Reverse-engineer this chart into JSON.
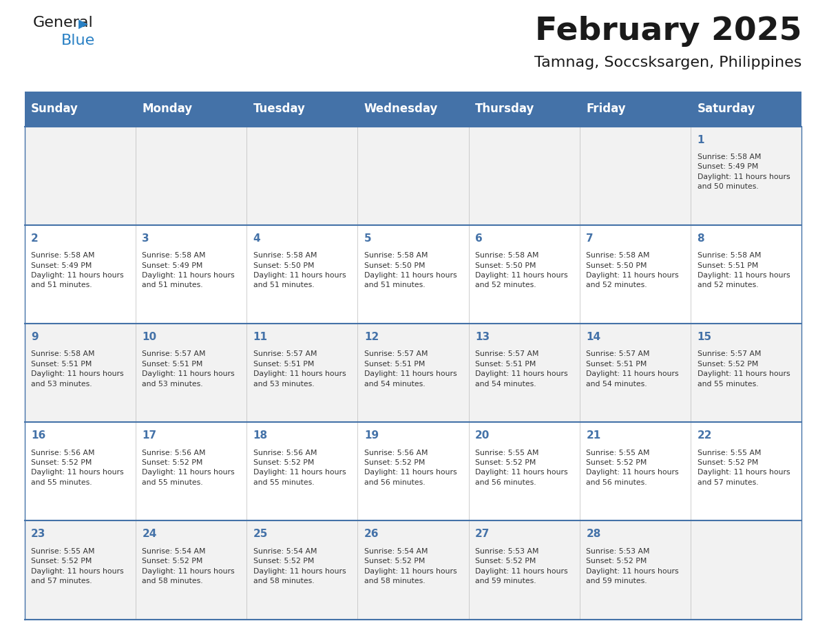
{
  "title": "February 2025",
  "subtitle": "Tamnag, Soccsksargen, Philippines",
  "days_of_week": [
    "Sunday",
    "Monday",
    "Tuesday",
    "Wednesday",
    "Thursday",
    "Friday",
    "Saturday"
  ],
  "header_bg": "#4472A8",
  "header_text": "#FFFFFF",
  "odd_row_bg": "#F2F2F2",
  "even_row_bg": "#FFFFFF",
  "line_color": "#4472A8",
  "day_num_color": "#4472A8",
  "cell_text_color": "#333333",
  "title_color": "#1a1a1a",
  "logo_general_color": "#1a1a1a",
  "logo_blue_color": "#2980C4",
  "calendar_data": [
    [
      null,
      null,
      null,
      null,
      null,
      null,
      {
        "day": 1,
        "sunrise": "5:58 AM",
        "sunset": "5:49 PM",
        "daylight": "11 hours and 50 minutes"
      }
    ],
    [
      {
        "day": 2,
        "sunrise": "5:58 AM",
        "sunset": "5:49 PM",
        "daylight": "11 hours and 51 minutes"
      },
      {
        "day": 3,
        "sunrise": "5:58 AM",
        "sunset": "5:49 PM",
        "daylight": "11 hours and 51 minutes"
      },
      {
        "day": 4,
        "sunrise": "5:58 AM",
        "sunset": "5:50 PM",
        "daylight": "11 hours and 51 minutes"
      },
      {
        "day": 5,
        "sunrise": "5:58 AM",
        "sunset": "5:50 PM",
        "daylight": "11 hours and 51 minutes"
      },
      {
        "day": 6,
        "sunrise": "5:58 AM",
        "sunset": "5:50 PM",
        "daylight": "11 hours and 52 minutes"
      },
      {
        "day": 7,
        "sunrise": "5:58 AM",
        "sunset": "5:50 PM",
        "daylight": "11 hours and 52 minutes"
      },
      {
        "day": 8,
        "sunrise": "5:58 AM",
        "sunset": "5:51 PM",
        "daylight": "11 hours and 52 minutes"
      }
    ],
    [
      {
        "day": 9,
        "sunrise": "5:58 AM",
        "sunset": "5:51 PM",
        "daylight": "11 hours and 53 minutes"
      },
      {
        "day": 10,
        "sunrise": "5:57 AM",
        "sunset": "5:51 PM",
        "daylight": "11 hours and 53 minutes"
      },
      {
        "day": 11,
        "sunrise": "5:57 AM",
        "sunset": "5:51 PM",
        "daylight": "11 hours and 53 minutes"
      },
      {
        "day": 12,
        "sunrise": "5:57 AM",
        "sunset": "5:51 PM",
        "daylight": "11 hours and 54 minutes"
      },
      {
        "day": 13,
        "sunrise": "5:57 AM",
        "sunset": "5:51 PM",
        "daylight": "11 hours and 54 minutes"
      },
      {
        "day": 14,
        "sunrise": "5:57 AM",
        "sunset": "5:51 PM",
        "daylight": "11 hours and 54 minutes"
      },
      {
        "day": 15,
        "sunrise": "5:57 AM",
        "sunset": "5:52 PM",
        "daylight": "11 hours and 55 minutes"
      }
    ],
    [
      {
        "day": 16,
        "sunrise": "5:56 AM",
        "sunset": "5:52 PM",
        "daylight": "11 hours and 55 minutes"
      },
      {
        "day": 17,
        "sunrise": "5:56 AM",
        "sunset": "5:52 PM",
        "daylight": "11 hours and 55 minutes"
      },
      {
        "day": 18,
        "sunrise": "5:56 AM",
        "sunset": "5:52 PM",
        "daylight": "11 hours and 55 minutes"
      },
      {
        "day": 19,
        "sunrise": "5:56 AM",
        "sunset": "5:52 PM",
        "daylight": "11 hours and 56 minutes"
      },
      {
        "day": 20,
        "sunrise": "5:55 AM",
        "sunset": "5:52 PM",
        "daylight": "11 hours and 56 minutes"
      },
      {
        "day": 21,
        "sunrise": "5:55 AM",
        "sunset": "5:52 PM",
        "daylight": "11 hours and 56 minutes"
      },
      {
        "day": 22,
        "sunrise": "5:55 AM",
        "sunset": "5:52 PM",
        "daylight": "11 hours and 57 minutes"
      }
    ],
    [
      {
        "day": 23,
        "sunrise": "5:55 AM",
        "sunset": "5:52 PM",
        "daylight": "11 hours and 57 minutes"
      },
      {
        "day": 24,
        "sunrise": "5:54 AM",
        "sunset": "5:52 PM",
        "daylight": "11 hours and 58 minutes"
      },
      {
        "day": 25,
        "sunrise": "5:54 AM",
        "sunset": "5:52 PM",
        "daylight": "11 hours and 58 minutes"
      },
      {
        "day": 26,
        "sunrise": "5:54 AM",
        "sunset": "5:52 PM",
        "daylight": "11 hours and 58 minutes"
      },
      {
        "day": 27,
        "sunrise": "5:53 AM",
        "sunset": "5:52 PM",
        "daylight": "11 hours and 59 minutes"
      },
      {
        "day": 28,
        "sunrise": "5:53 AM",
        "sunset": "5:52 PM",
        "daylight": "11 hours and 59 minutes"
      },
      null
    ]
  ]
}
